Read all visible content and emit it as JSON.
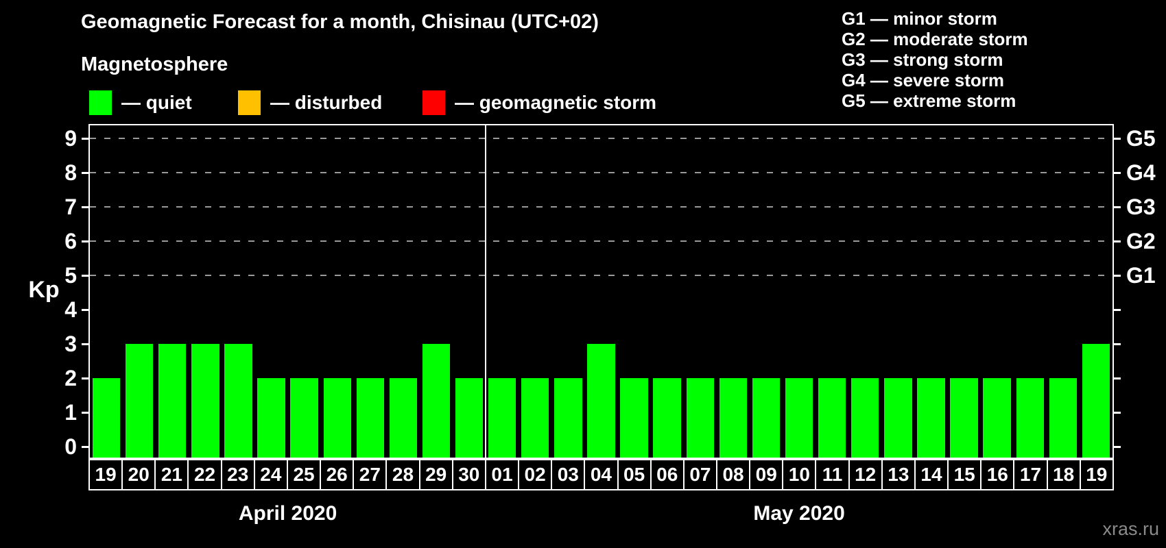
{
  "header": {
    "title": "Geomagnetic Forecast for a month, Chisinau (UTC+02)",
    "subtitle": "Magnetosphere"
  },
  "legend": {
    "items": [
      {
        "key": "quiet",
        "label": "— quiet",
        "color": "#00ff00"
      },
      {
        "key": "disturbed",
        "label": "— disturbed",
        "color": "#ffc000"
      },
      {
        "key": "storm",
        "label": "— geomagnetic storm",
        "color": "#ff0000"
      }
    ]
  },
  "g_legend": {
    "items": [
      "G1 — minor storm",
      "G2 — moderate storm",
      "G3 — strong storm",
      "G4 — severe storm",
      "G5 — extreme storm"
    ]
  },
  "chart_data": {
    "type": "bar",
    "title": "Geomagnetic Forecast for a month, Chisinau (UTC+02)",
    "subtitle": "Magnetosphere",
    "ylabel": "Kp",
    "ylim": [
      0,
      9.5
    ],
    "y_ticks": [
      0,
      1,
      2,
      3,
      4,
      5,
      6,
      7,
      8,
      9
    ],
    "grid_levels": [
      5,
      6,
      7,
      8,
      9
    ],
    "grid_style": "dashed",
    "right_axis": [
      {
        "kp": 5,
        "label": "G1"
      },
      {
        "kp": 6,
        "label": "G2"
      },
      {
        "kp": 7,
        "label": "G3"
      },
      {
        "kp": 8,
        "label": "G4"
      },
      {
        "kp": 9,
        "label": "G5"
      }
    ],
    "categories": [
      "19",
      "20",
      "21",
      "22",
      "23",
      "24",
      "25",
      "26",
      "27",
      "28",
      "29",
      "30",
      "01",
      "02",
      "03",
      "04",
      "05",
      "06",
      "07",
      "08",
      "09",
      "10",
      "11",
      "12",
      "13",
      "14",
      "15",
      "16",
      "17",
      "18",
      "19"
    ],
    "values": [
      2,
      3,
      3,
      3,
      3,
      2,
      2,
      2,
      2,
      2,
      3,
      2,
      2,
      2,
      2,
      3,
      2,
      2,
      2,
      2,
      2,
      2,
      2,
      2,
      2,
      2,
      2,
      2,
      2,
      2,
      3
    ],
    "bar_status": "quiet",
    "bar_color": "#00ff00",
    "months": [
      {
        "label": "April 2020",
        "days": 12
      },
      {
        "label": "May 2020",
        "days": 19
      }
    ],
    "legend_position": "top-left",
    "background": "#000000",
    "text_color": "#ffffff"
  },
  "watermark": "xras.ru"
}
